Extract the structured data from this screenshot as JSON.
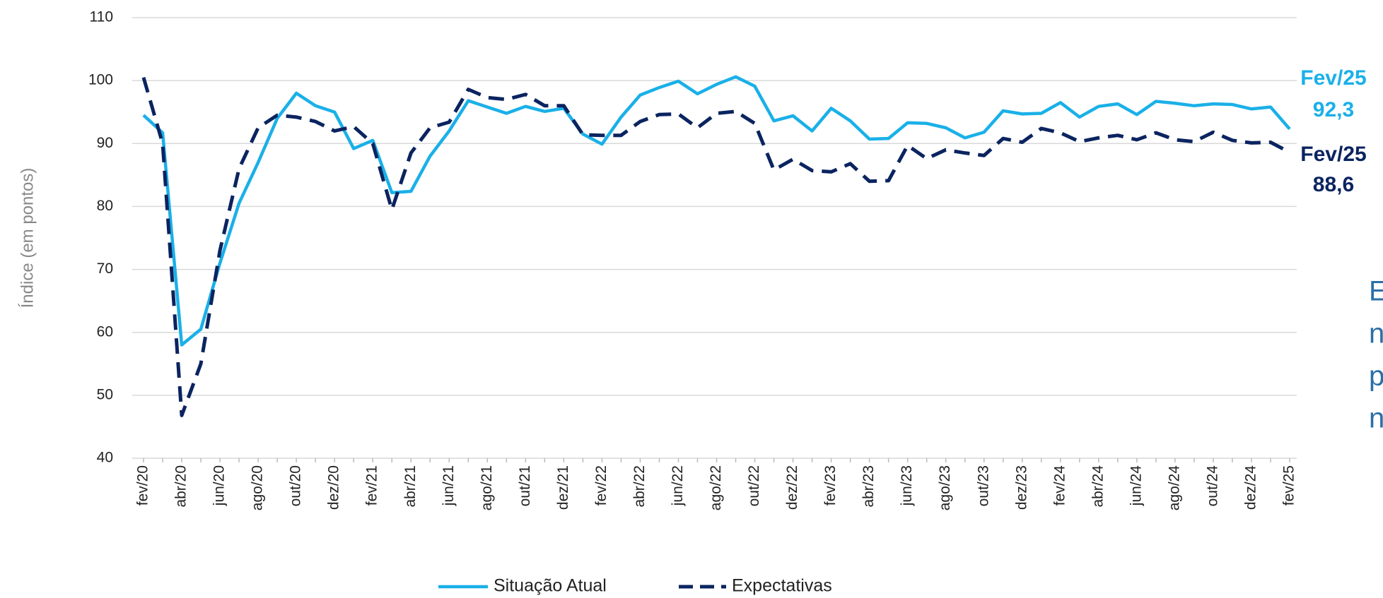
{
  "chart_data": {
    "type": "line",
    "y_label": "Índice (em pontos)",
    "categories": [
      "fev/20",
      null,
      "abr/20",
      null,
      "jun/20",
      null,
      "ago/20",
      null,
      "out/20",
      null,
      "dez/20",
      null,
      "fev/21",
      null,
      "abr/21",
      null,
      "jun/21",
      null,
      "ago/21",
      null,
      "out/21",
      null,
      "dez/21",
      null,
      "fev/22",
      null,
      "abr/22",
      null,
      "jun/22",
      null,
      "ago/22",
      null,
      "out/22",
      null,
      "dez/22",
      null,
      "fev/23",
      null,
      "abr/23",
      null,
      "jun/23",
      null,
      "ago/23",
      null,
      "out/23",
      null,
      "dez/23",
      null,
      "fev/24",
      null,
      "abr/24",
      null,
      "jun/24",
      null,
      "ago/24",
      null,
      "out/24",
      null,
      "dez/24",
      null,
      "fev/25"
    ],
    "series": [
      {
        "name": "Situação Atual",
        "color": "#1ab0e8",
        "dashed": false,
        "values": [
          94.5,
          91.7,
          58,
          60.5,
          71,
          80.5,
          87,
          94,
          98,
          96,
          95,
          89.2,
          90.5,
          82.2,
          82.4,
          88,
          92,
          96.8,
          95.8,
          94.8,
          95.9,
          95.1,
          95.6,
          91.5,
          89.9,
          94.2,
          97.7,
          98.9,
          99.9,
          97.9,
          99.4,
          100.6,
          99.1,
          93.6,
          94.4,
          92,
          95.6,
          93.6,
          90.7,
          90.8,
          93.3,
          93.2,
          92.5,
          90.9,
          91.8,
          95.2,
          94.7,
          94.8,
          96.5,
          94.2,
          95.9,
          96.3,
          94.6,
          96.7,
          96.4,
          96,
          96.3,
          96.2,
          95.5,
          95.8,
          92.3
        ]
      },
      {
        "name": "Expectativas",
        "color": "#0b2460",
        "dashed": true,
        "values": [
          100.5,
          90,
          46.8,
          55,
          73,
          86,
          92.5,
          94.5,
          94.2,
          93.5,
          92,
          92.7,
          90,
          79.5,
          88.5,
          92.5,
          93.4,
          98.6,
          97.3,
          97,
          97.8,
          96,
          96,
          91.4,
          91.3,
          91.3,
          93.5,
          94.6,
          94.7,
          92.5,
          94.8,
          95.1,
          93.2,
          85.8,
          87.5,
          85.7,
          85.5,
          86.8,
          84,
          84.1,
          89.7,
          87.6,
          89,
          88.5,
          88.1,
          90.8,
          90.2,
          92.4,
          91.7,
          90.3,
          90.9,
          91.3,
          90.6,
          91.7,
          90.6,
          90.3,
          91.8,
          90.5,
          90.1,
          90.2,
          88.6
        ]
      }
    ],
    "end_labels": [
      {
        "period": "Fev/25",
        "value": "92,3",
        "color": "#1ab0e8"
      },
      {
        "period": "Fev/25",
        "value": "88,6",
        "color": "#0b2460"
      }
    ],
    "side_text_lines": [
      "E",
      "n",
      "p",
      "n"
    ],
    "ylim": [
      40,
      110
    ],
    "yticks": [
      40,
      50,
      60,
      70,
      80,
      90,
      100,
      110
    ],
    "grid": true,
    "legend": "bottom"
  }
}
